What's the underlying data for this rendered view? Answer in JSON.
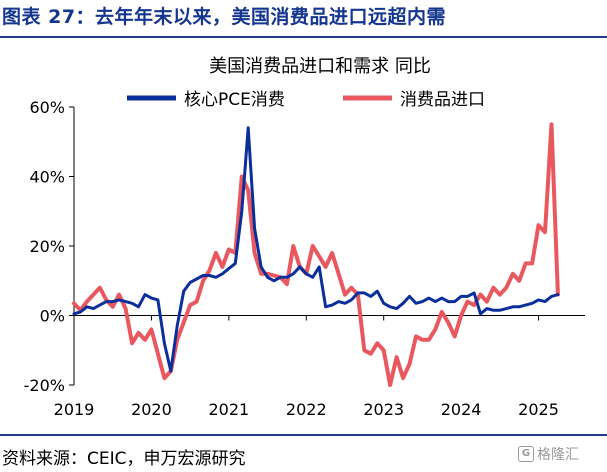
{
  "figure": {
    "title": "图表 27：去年年末以来，美国消费品进口远超内需",
    "source": "资料来源：CEIC，申万宏源研究",
    "watermark": "格隆汇"
  },
  "colors": {
    "series1": "#0b2f9a",
    "series2": "#e8585e",
    "axis": "#000000",
    "header_rule": "#1f3d8f"
  },
  "chart_data": {
    "type": "line",
    "title": "美国消费品进口和需求 同比",
    "ylabel": "",
    "xlabel": "",
    "ylim": [
      -20,
      60
    ],
    "xlim": [
      2019.0,
      2025.6
    ],
    "y_ticks": [
      -20,
      0,
      20,
      40,
      60
    ],
    "y_tick_labels": [
      "-20%",
      "0%",
      "20%",
      "40%",
      "60%"
    ],
    "x_ticks": [
      2019,
      2020,
      2021,
      2022,
      2023,
      2024,
      2025
    ],
    "x_tick_labels": [
      "2019",
      "2020",
      "2021",
      "2022",
      "2023",
      "2024",
      "2025"
    ],
    "legend_position": "top",
    "grid": false,
    "series": [
      {
        "name": "核心PCE消费",
        "color": "#0b2f9a",
        "x": [
          2019.0,
          2019.083,
          2019.167,
          2019.25,
          2019.333,
          2019.417,
          2019.5,
          2019.583,
          2019.667,
          2019.75,
          2019.833,
          2019.917,
          2020.0,
          2020.083,
          2020.167,
          2020.25,
          2020.333,
          2020.417,
          2020.5,
          2020.583,
          2020.667,
          2020.75,
          2020.833,
          2020.917,
          2021.0,
          2021.083,
          2021.167,
          2021.25,
          2021.333,
          2021.417,
          2021.5,
          2021.583,
          2021.667,
          2021.75,
          2021.833,
          2021.917,
          2022.0,
          2022.083,
          2022.167,
          2022.25,
          2022.333,
          2022.417,
          2022.5,
          2022.583,
          2022.667,
          2022.75,
          2022.833,
          2022.917,
          2023.0,
          2023.083,
          2023.167,
          2023.25,
          2023.333,
          2023.417,
          2023.5,
          2023.583,
          2023.667,
          2023.75,
          2023.833,
          2023.917,
          2024.0,
          2024.083,
          2024.167,
          2024.25,
          2024.333,
          2024.417,
          2024.5,
          2024.583,
          2024.667,
          2024.75,
          2024.833,
          2024.917,
          2025.0,
          2025.083,
          2025.167,
          2025.25
        ],
        "values": [
          0.5,
          1.0,
          2.5,
          2.0,
          3.0,
          4.0,
          4.0,
          4.5,
          4.0,
          3.5,
          2.5,
          6.0,
          5.0,
          4.5,
          -8.0,
          -16.0,
          -3.0,
          7.0,
          9.5,
          10.5,
          11.5,
          11.5,
          11.0,
          12.0,
          13.5,
          15.0,
          30.0,
          54.0,
          25.0,
          14.0,
          11.0,
          10.0,
          11.0,
          11.0,
          12.0,
          14.0,
          12.0,
          11.0,
          14.0,
          2.5,
          3.0,
          4.0,
          3.5,
          4.5,
          6.5,
          6.5,
          5.5,
          7.0,
          3.5,
          2.5,
          2.0,
          3.5,
          5.5,
          3.5,
          4.0,
          5.0,
          4.0,
          5.0,
          4.0,
          4.0,
          5.5,
          5.5,
          6.5,
          0.5,
          2.0,
          1.5,
          1.5,
          2.0,
          2.5,
          2.5,
          3.0,
          3.5,
          4.5,
          4.0,
          5.5,
          6.0
        ]
      },
      {
        "name": "消费品进口",
        "color": "#e8585e",
        "x": [
          2019.0,
          2019.083,
          2019.167,
          2019.25,
          2019.333,
          2019.417,
          2019.5,
          2019.583,
          2019.667,
          2019.75,
          2019.833,
          2019.917,
          2020.0,
          2020.083,
          2020.167,
          2020.25,
          2020.333,
          2020.417,
          2020.5,
          2020.583,
          2020.667,
          2020.75,
          2020.833,
          2020.917,
          2021.0,
          2021.083,
          2021.167,
          2021.25,
          2021.333,
          2021.417,
          2021.5,
          2021.583,
          2021.667,
          2021.75,
          2021.833,
          2021.917,
          2022.0,
          2022.083,
          2022.167,
          2022.25,
          2022.333,
          2022.417,
          2022.5,
          2022.583,
          2022.667,
          2022.75,
          2022.833,
          2022.917,
          2023.0,
          2023.083,
          2023.167,
          2023.25,
          2023.333,
          2023.417,
          2023.5,
          2023.583,
          2023.667,
          2023.75,
          2023.833,
          2023.917,
          2024.0,
          2024.083,
          2024.167,
          2024.25,
          2024.333,
          2024.417,
          2024.5,
          2024.583,
          2024.667,
          2024.75,
          2024.833,
          2024.917,
          2025.0,
          2025.083,
          2025.167,
          2025.25
        ],
        "values": [
          3.5,
          1.5,
          4.0,
          6.0,
          8.0,
          4.5,
          2.5,
          6.0,
          2.0,
          -8.0,
          -5.0,
          -7.0,
          -4.0,
          -11.0,
          -18.0,
          -16.0,
          -7.0,
          -2.0,
          3.0,
          4.0,
          10.0,
          13.0,
          18.0,
          14.0,
          19.0,
          18.0,
          40.0,
          36.0,
          18.0,
          12.0,
          12.0,
          11.5,
          11.0,
          9.0,
          20.0,
          14.0,
          12.0,
          20.0,
          17.0,
          14.0,
          18.0,
          12.0,
          6.0,
          8.0,
          6.0,
          -10.0,
          -11.0,
          -8.0,
          -10.0,
          -20.0,
          -12.0,
          -18.0,
          -14.0,
          -6.0,
          -7.0,
          -7.0,
          -4.0,
          1.0,
          -2.0,
          -6.0,
          0.0,
          4.0,
          3.0,
          6.0,
          4.0,
          8.0,
          6.0,
          8.0,
          12.0,
          10.0,
          15.0,
          15.0,
          26.0,
          24.0,
          55.0,
          6.0
        ]
      }
    ]
  }
}
